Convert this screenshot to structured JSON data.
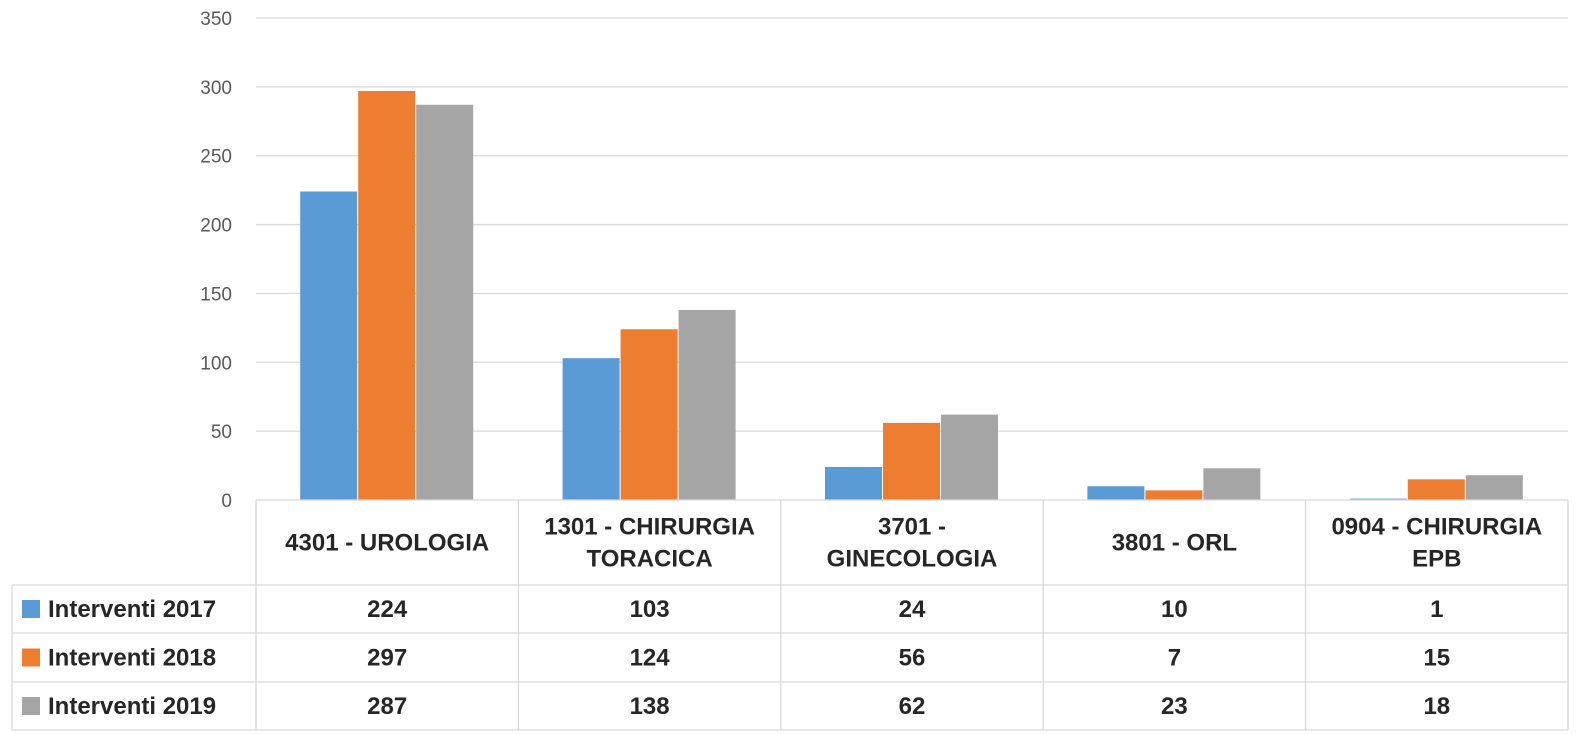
{
  "chart_data": {
    "type": "bar",
    "title": "",
    "xlabel": "",
    "ylabel": "",
    "ylim": [
      0,
      350
    ],
    "yticks": [
      0,
      50,
      100,
      150,
      200,
      250,
      300,
      350
    ],
    "grid": true,
    "legend_placement": "data-table-left",
    "categories": [
      [
        "4301 - UROLOGIA"
      ],
      [
        "1301 - CHIRURGIA",
        "TORACICA"
      ],
      [
        "3701 -",
        "GINECOLOGIA"
      ],
      [
        "3801 - ORL"
      ],
      [
        "0904 - CHIRURGIA",
        "EPB"
      ]
    ],
    "series": [
      {
        "name": "Interventi 2017",
        "color": "#5B9BD5",
        "values": [
          224,
          103,
          24,
          10,
          1
        ]
      },
      {
        "name": "Interventi 2018",
        "color": "#ED7D31",
        "values": [
          297,
          124,
          56,
          7,
          15
        ]
      },
      {
        "name": "Interventi 2019",
        "color": "#A5A5A5",
        "values": [
          287,
          138,
          62,
          23,
          18
        ]
      }
    ]
  }
}
